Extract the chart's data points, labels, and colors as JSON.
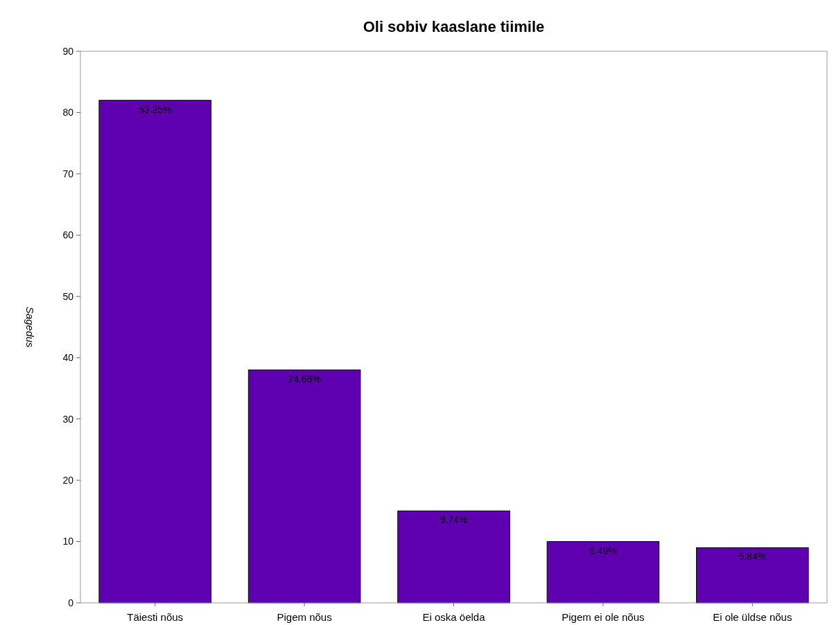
{
  "chart_data": {
    "type": "bar",
    "title": "Oli sobiv kaaslane tiimile",
    "ylabel": "Sagedus",
    "categories": [
      "Täiesti nõus",
      "Pigem nõus",
      "Ei oska öelda",
      "Pigem ei ole nõus",
      "Ei ole üldse nõus"
    ],
    "values": [
      82,
      38,
      15,
      10,
      9
    ],
    "annotations": [
      {
        "text": "53.25%",
        "x": "Täiesti nõus",
        "y": 82
      },
      {
        "text": "24.68%",
        "x": "Pigem nõus",
        "y": 38
      },
      {
        "text": "9.74%",
        "x": "Ei oska öelda",
        "y": 15
      },
      {
        "text": "6.49%",
        "x": "Pigem ei ole nõus",
        "y": 10
      },
      {
        "text": "5.84%",
        "x": "Ei ole üldse nõus",
        "y": 9
      }
    ],
    "color": "#5e00b0",
    "ylim": [
      0,
      90
    ],
    "yticks": [
      0,
      10,
      20,
      30,
      40,
      50,
      60,
      70,
      80,
      90
    ],
    "grid": false
  }
}
